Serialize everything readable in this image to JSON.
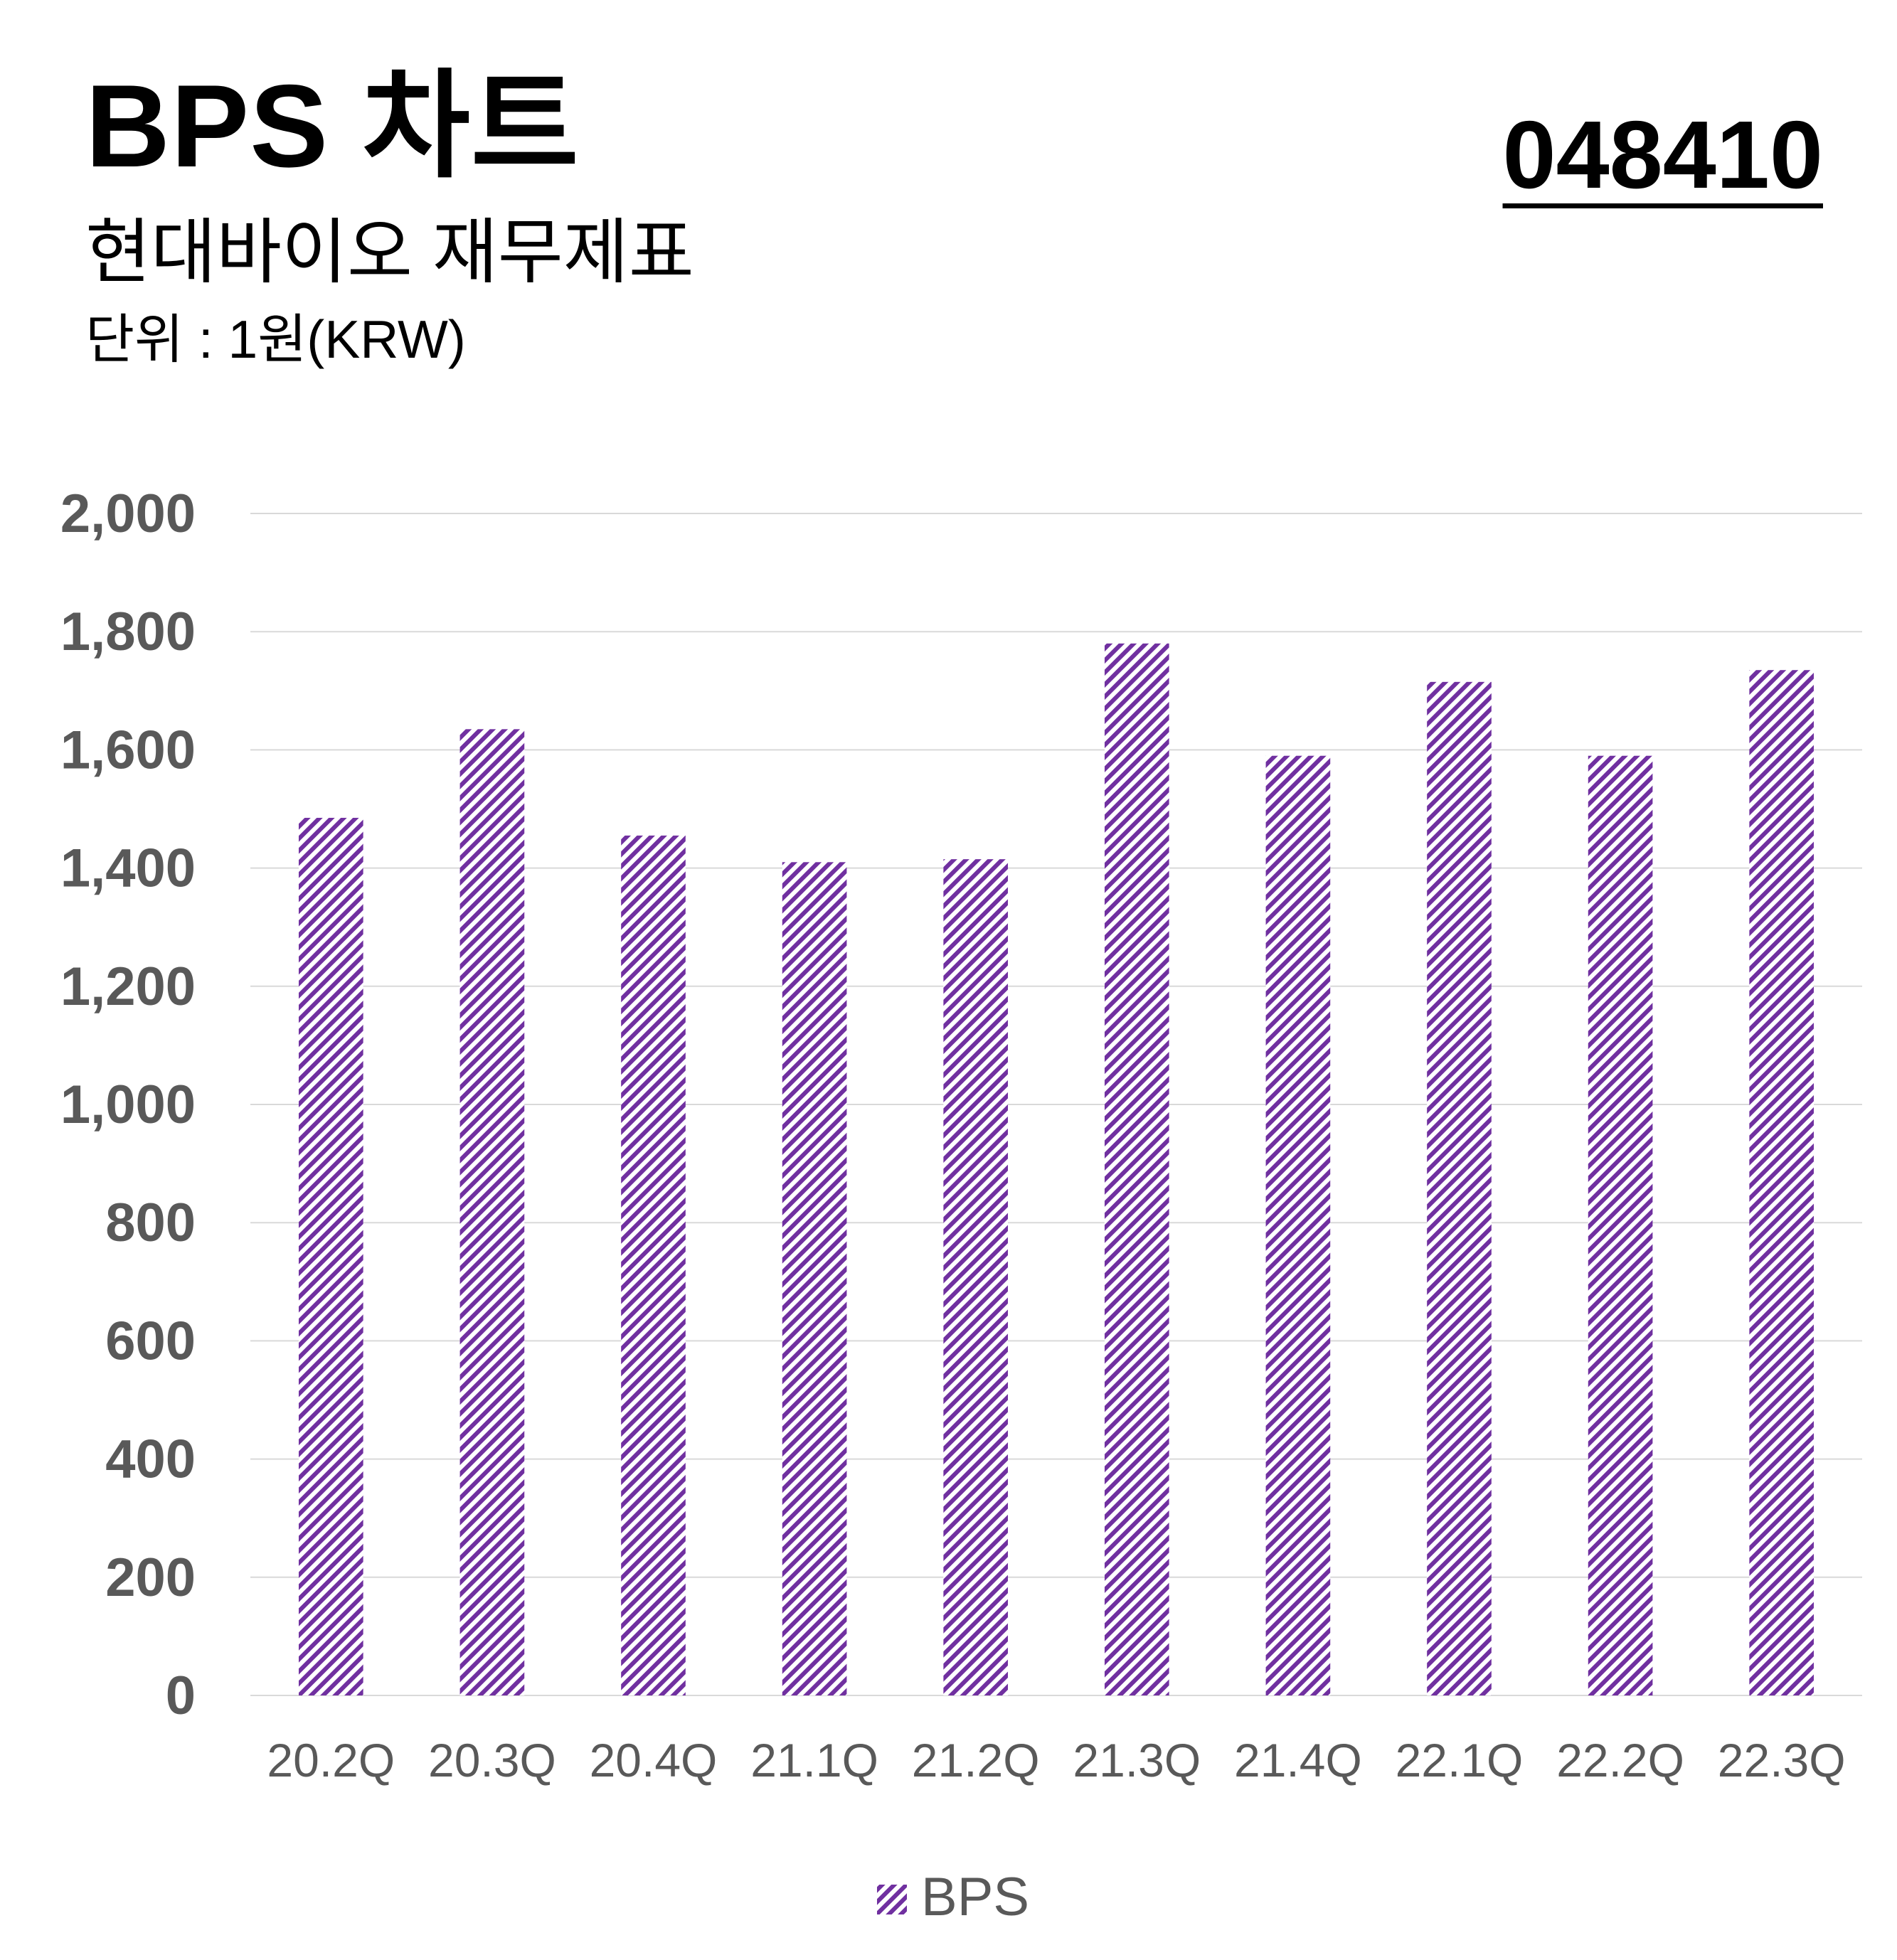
{
  "header": {
    "title": "BPS 차트",
    "code": "048410",
    "subtitle": "현대바이오 재무제표",
    "unit": "단위 : 1원(KRW)"
  },
  "colors": {
    "bar_stripe": "#7030a0",
    "grid": "#d9d9d9",
    "axis_text": "#595959"
  },
  "chart_data": {
    "type": "bar",
    "categories": [
      "20.2Q",
      "20.3Q",
      "20.4Q",
      "21.1Q",
      "21.2Q",
      "21.3Q",
      "21.4Q",
      "22.1Q",
      "22.2Q",
      "22.3Q"
    ],
    "series": [
      {
        "name": "BPS",
        "values": [
          1485,
          1635,
          1455,
          1410,
          1415,
          1780,
          1590,
          1715,
          1590,
          1735
        ]
      }
    ],
    "yticks": [
      "0",
      "200",
      "400",
      "600",
      "800",
      "1,000",
      "1,200",
      "1,400",
      "1,600",
      "1,800",
      "2,000"
    ],
    "ylim": [
      0,
      2000
    ],
    "grid": true,
    "legend": "bottom-center",
    "pattern": "diagonal-stripes"
  }
}
